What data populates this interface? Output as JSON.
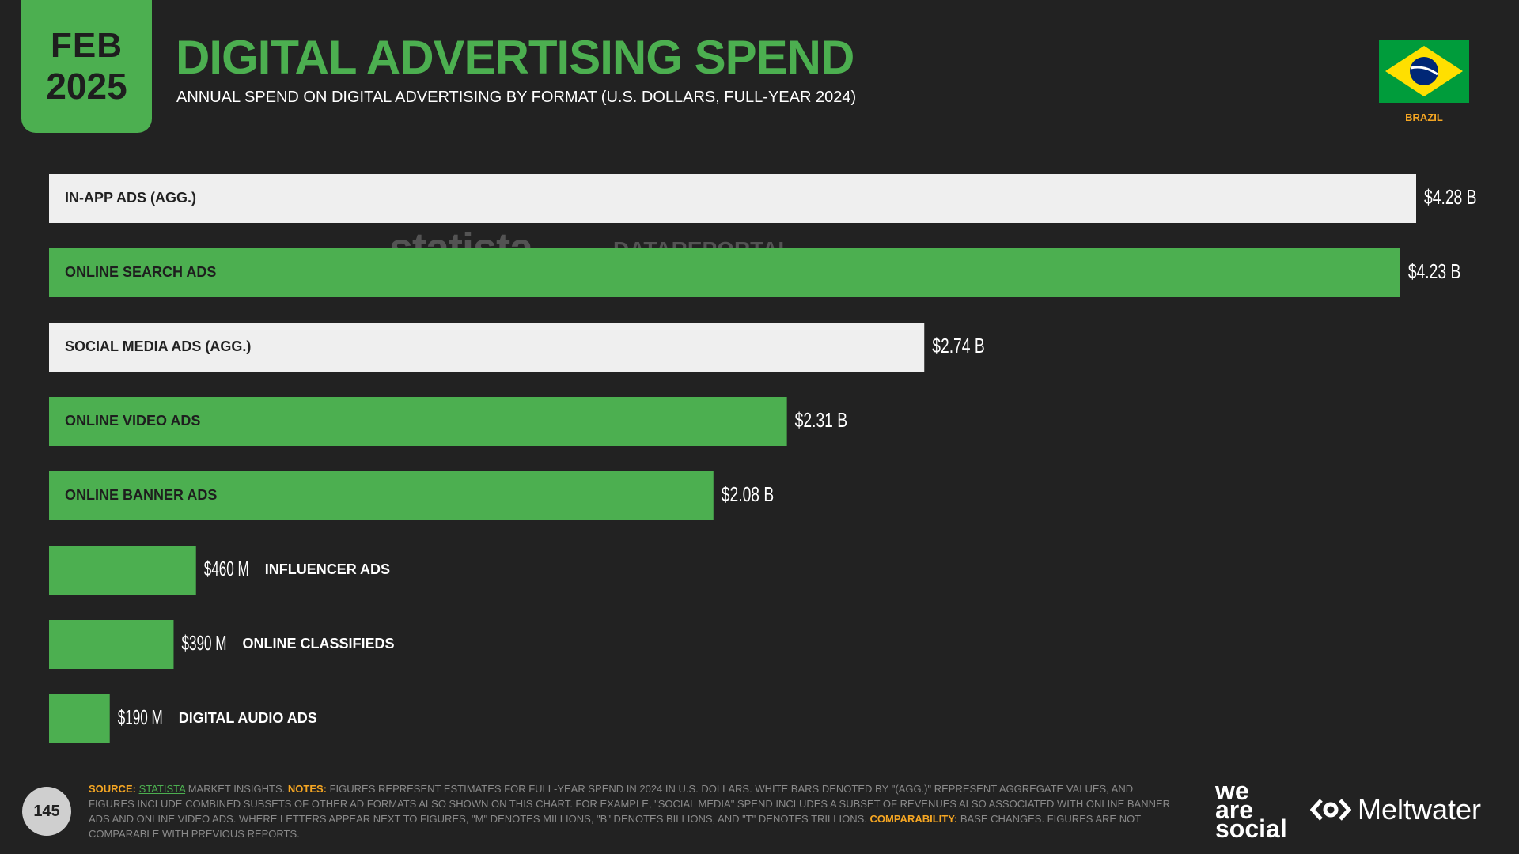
{
  "header": {
    "month": "FEB",
    "year": "2025",
    "title": "DIGITAL ADVERTISING SPEND",
    "subtitle": "ANNUAL SPEND ON DIGITAL ADVERTISING BY FORMAT (U.S. DOLLARS, FULL-YEAR 2024)",
    "country": "BRAZIL"
  },
  "watermarks": {
    "left": "statista",
    "right": "DATAREPORTAL"
  },
  "colors": {
    "green": "#4caf50",
    "white_bar": "#efefef",
    "background": "#222222",
    "accent_orange": "#f5a623"
  },
  "chart_data": {
    "type": "bar",
    "orientation": "horizontal",
    "unit": "USD billions",
    "categories": [
      "IN-APP ADS (AGG.)",
      "ONLINE SEARCH ADS",
      "SOCIAL MEDIA ADS (AGG.)",
      "ONLINE VIDEO ADS",
      "ONLINE BANNER ADS",
      "INFLUENCER ADS",
      "ONLINE CLASSIFIEDS",
      "DIGITAL AUDIO ADS"
    ],
    "values": [
      4.28,
      4.23,
      2.74,
      2.31,
      2.08,
      0.46,
      0.39,
      0.19
    ],
    "value_labels": [
      "$4.28 B",
      "$4.23 B",
      "$2.74 B",
      "$2.31 B",
      "$2.08 B",
      "$460 M",
      "$390 M",
      "$190 M"
    ],
    "bar_styles": [
      "white",
      "green",
      "white",
      "green",
      "green",
      "green",
      "green",
      "green"
    ],
    "xlim": [
      0,
      4.28
    ]
  },
  "footer": {
    "page_number": "145",
    "source_label": "SOURCE:",
    "source_name": "STATISTA",
    "source_rest": " MARKET INSIGHTS. ",
    "notes_label": "NOTES:",
    "notes_text": " FIGURES REPRESENT ESTIMATES FOR FULL-YEAR SPEND IN 2024 IN U.S. DOLLARS. WHITE BARS DENOTED BY \"(AGG.)\" REPRESENT AGGREGATE VALUES, AND FIGURES INCLUDE COMBINED SUBSETS OF OTHER AD FORMATS ALSO SHOWN ON THIS CHART. FOR EXAMPLE, \"SOCIAL MEDIA\" SPEND INCLUDES A SUBSET OF REVENUES ALSO ASSOCIATED WITH ONLINE BANNER ADS AND ONLINE VIDEO ADS. WHERE LETTERS APPEAR NEXT TO FIGURES, \"M\" DENOTES MILLIONS, \"B\" DENOTES BILLIONS, AND \"T\" DENOTES TRILLIONS. ",
    "comparability_label": "COMPARABILITY:",
    "comparability_text": " BASE CHANGES. FIGURES ARE NOT COMPARABLE WITH PREVIOUS REPORTS.",
    "brand_left": "we are social",
    "brand_right": "Meltwater"
  }
}
